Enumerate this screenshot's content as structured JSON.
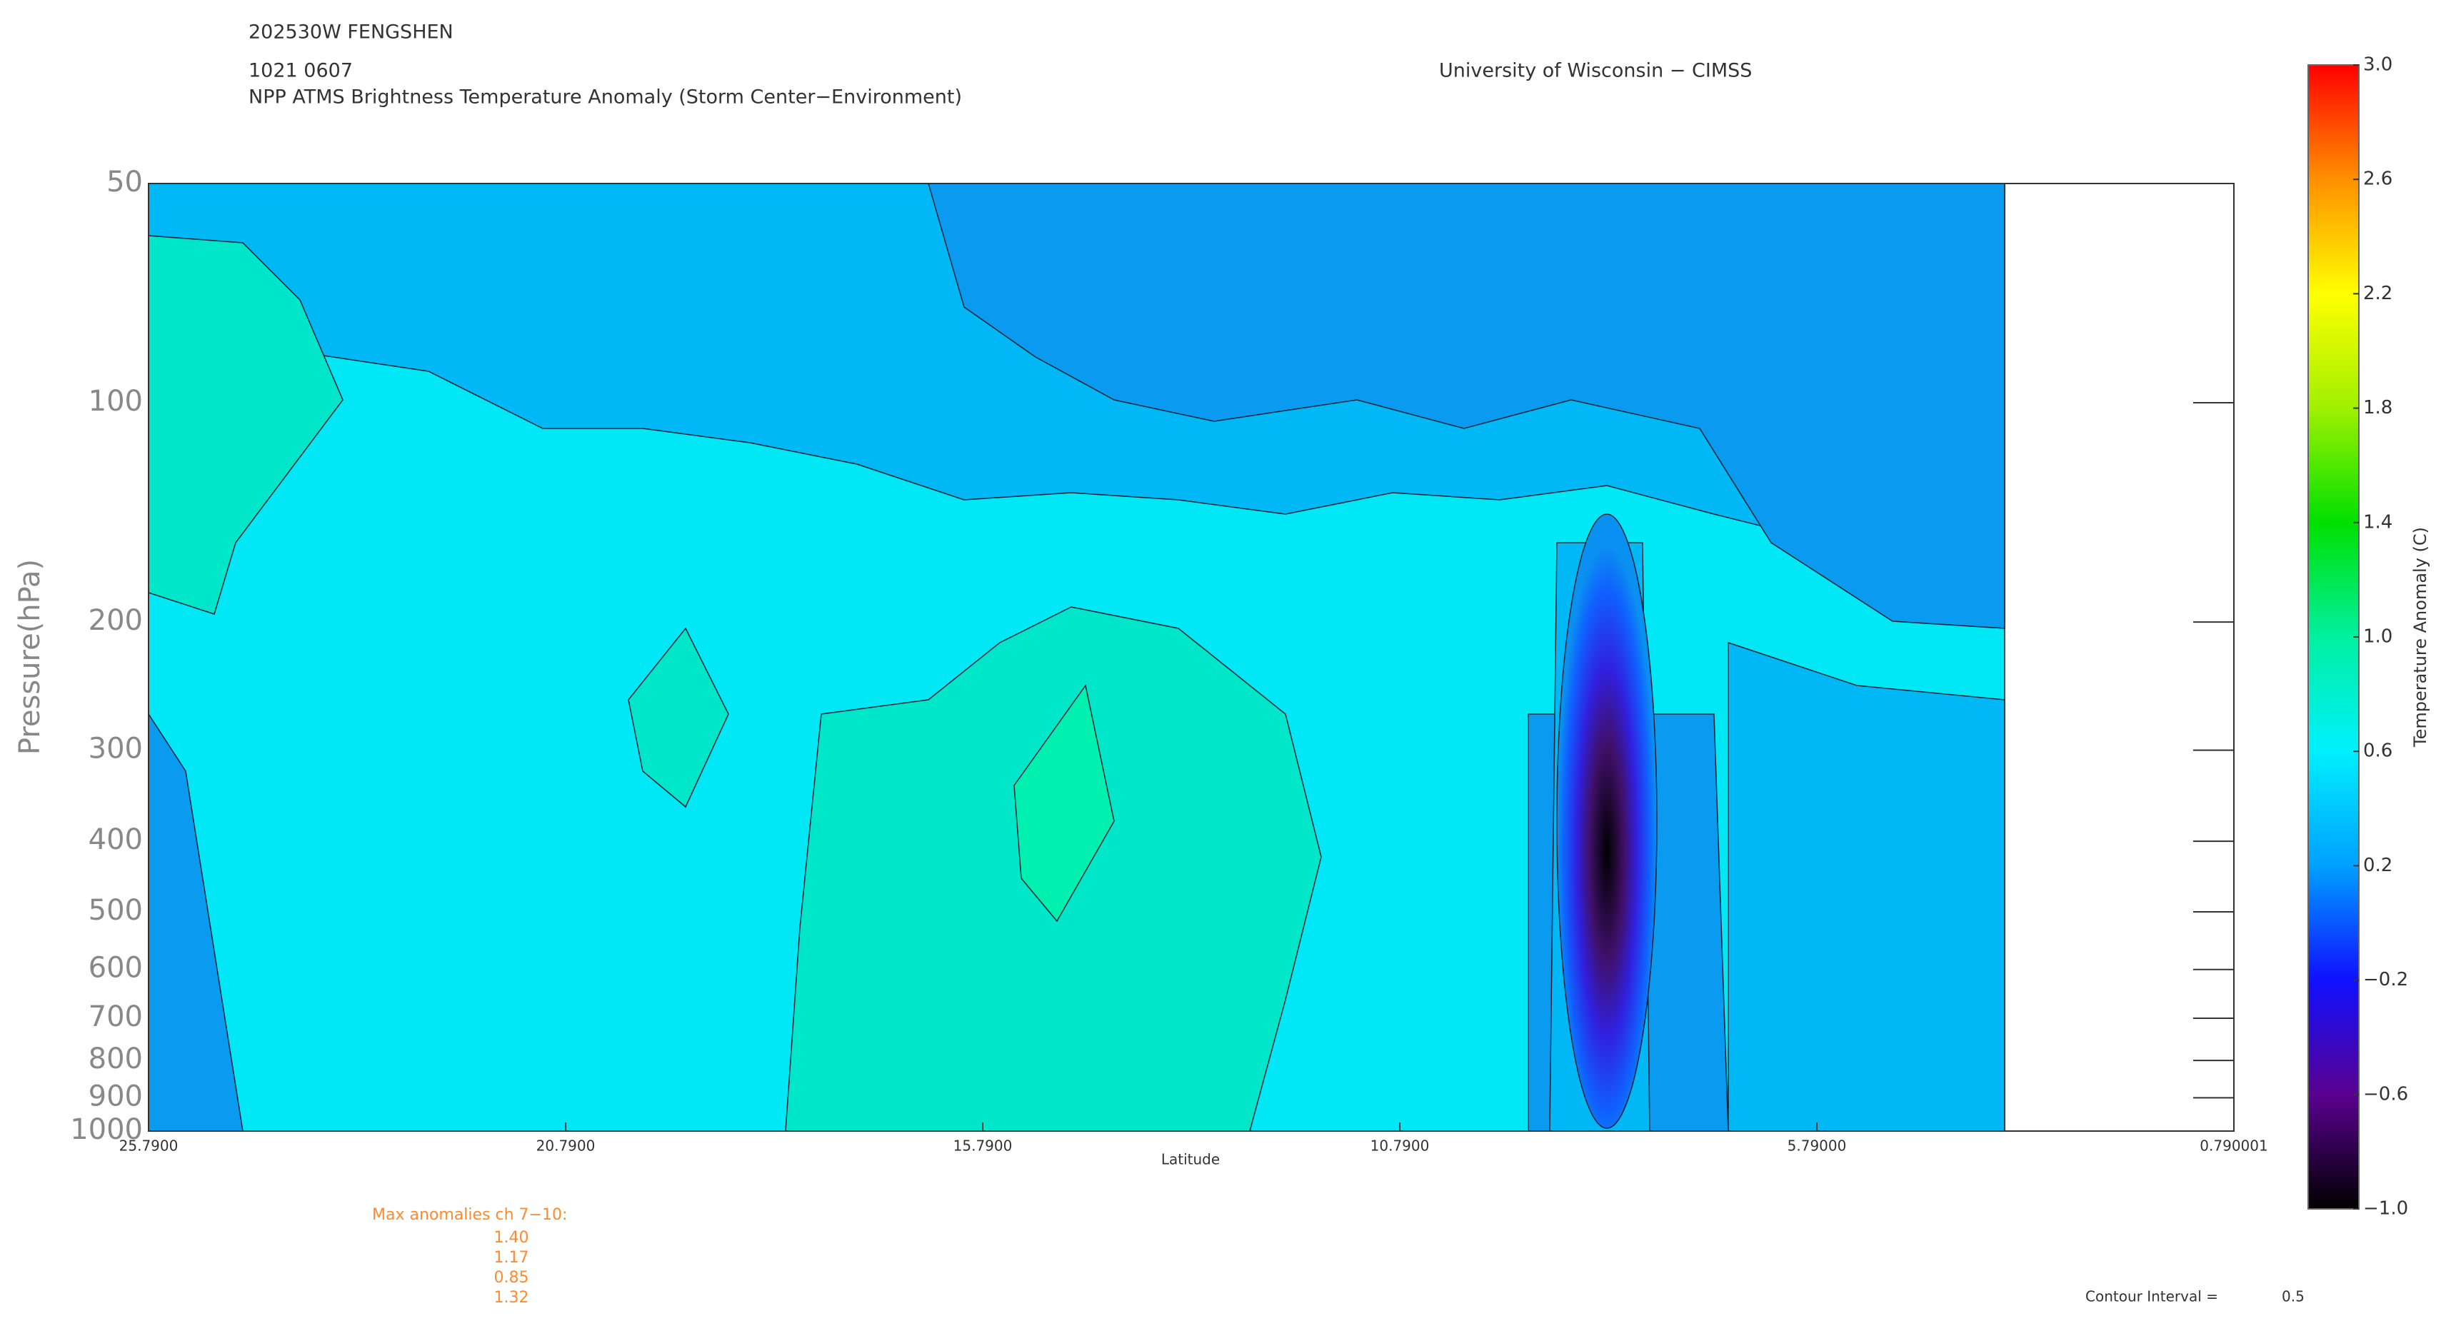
{
  "chart_data": {
    "type": "contour",
    "header": {
      "storm": "202530W FENGSHEN",
      "time": "1021 0607",
      "subtitle": "NPP ATMS Brightness Temperature Anomaly (Storm Center−Environment)",
      "source": "University of Wisconsin − CIMSS"
    },
    "y_label": "Pressure(hPa)",
    "x_label": "Latitude",
    "log_y": true,
    "ylim": [
      1000,
      50
    ],
    "yticks": [
      50,
      100,
      200,
      300,
      400,
      500,
      600,
      700,
      800,
      900,
      1000
    ],
    "xlim": [
      25.79,
      0.790001
    ],
    "xticks": [
      {
        "value": 25.79,
        "label": "25.7900"
      },
      {
        "value": 20.79,
        "label": "20.7900"
      },
      {
        "value": 15.79,
        "label": "15.7900"
      },
      {
        "value": 10.79,
        "label": "10.7900"
      },
      {
        "value": 5.79,
        "label": "5.79000"
      },
      0.790001
    ],
    "colorbar": {
      "label": "Temperature Anomaly (C)",
      "lim": [
        -1,
        3
      ],
      "colors": [
        "#000000",
        "#5a0090",
        "#1010ff",
        "#00a0ff",
        "#00f0ff",
        "#00f0a0",
        "#00e000",
        "#a0f000",
        "#ffff00",
        "#ff9000",
        "#ff0000"
      ],
      "ticks": [
        {
          "value": -1,
          "label": "−1.0"
        },
        {
          "value": -0.6,
          "label": "−0.6"
        },
        {
          "value": -0.2,
          "label": "−0.2"
        },
        {
          "value": 0.2,
          "label": "0.2"
        },
        {
          "value": 0.6,
          "label": "0.6"
        },
        {
          "value": 1,
          "label": "1.0"
        },
        {
          "value": 1.4,
          "label": "1.4"
        },
        {
          "value": 1.8,
          "label": "1.8"
        },
        {
          "value": 2.2,
          "label": "2.2"
        },
        {
          "value": 2.6,
          "label": "2.6"
        },
        {
          "value": 3,
          "label": "3.0"
        }
      ]
    },
    "max_anomalies": {
      "label": "Max anomalies ch 7−10:",
      "values": [
        {
          "value": 1.4,
          "label": "1.40"
        },
        {
          "value": 1.17,
          "label": "1.17"
        },
        {
          "value": 0.85,
          "label": "0.85"
        },
        {
          "value": 1.32,
          "label": "1.32"
        }
      ]
    },
    "contour_interval": {
      "label": "Contour Interval =",
      "value": 0.5
    }
  }
}
